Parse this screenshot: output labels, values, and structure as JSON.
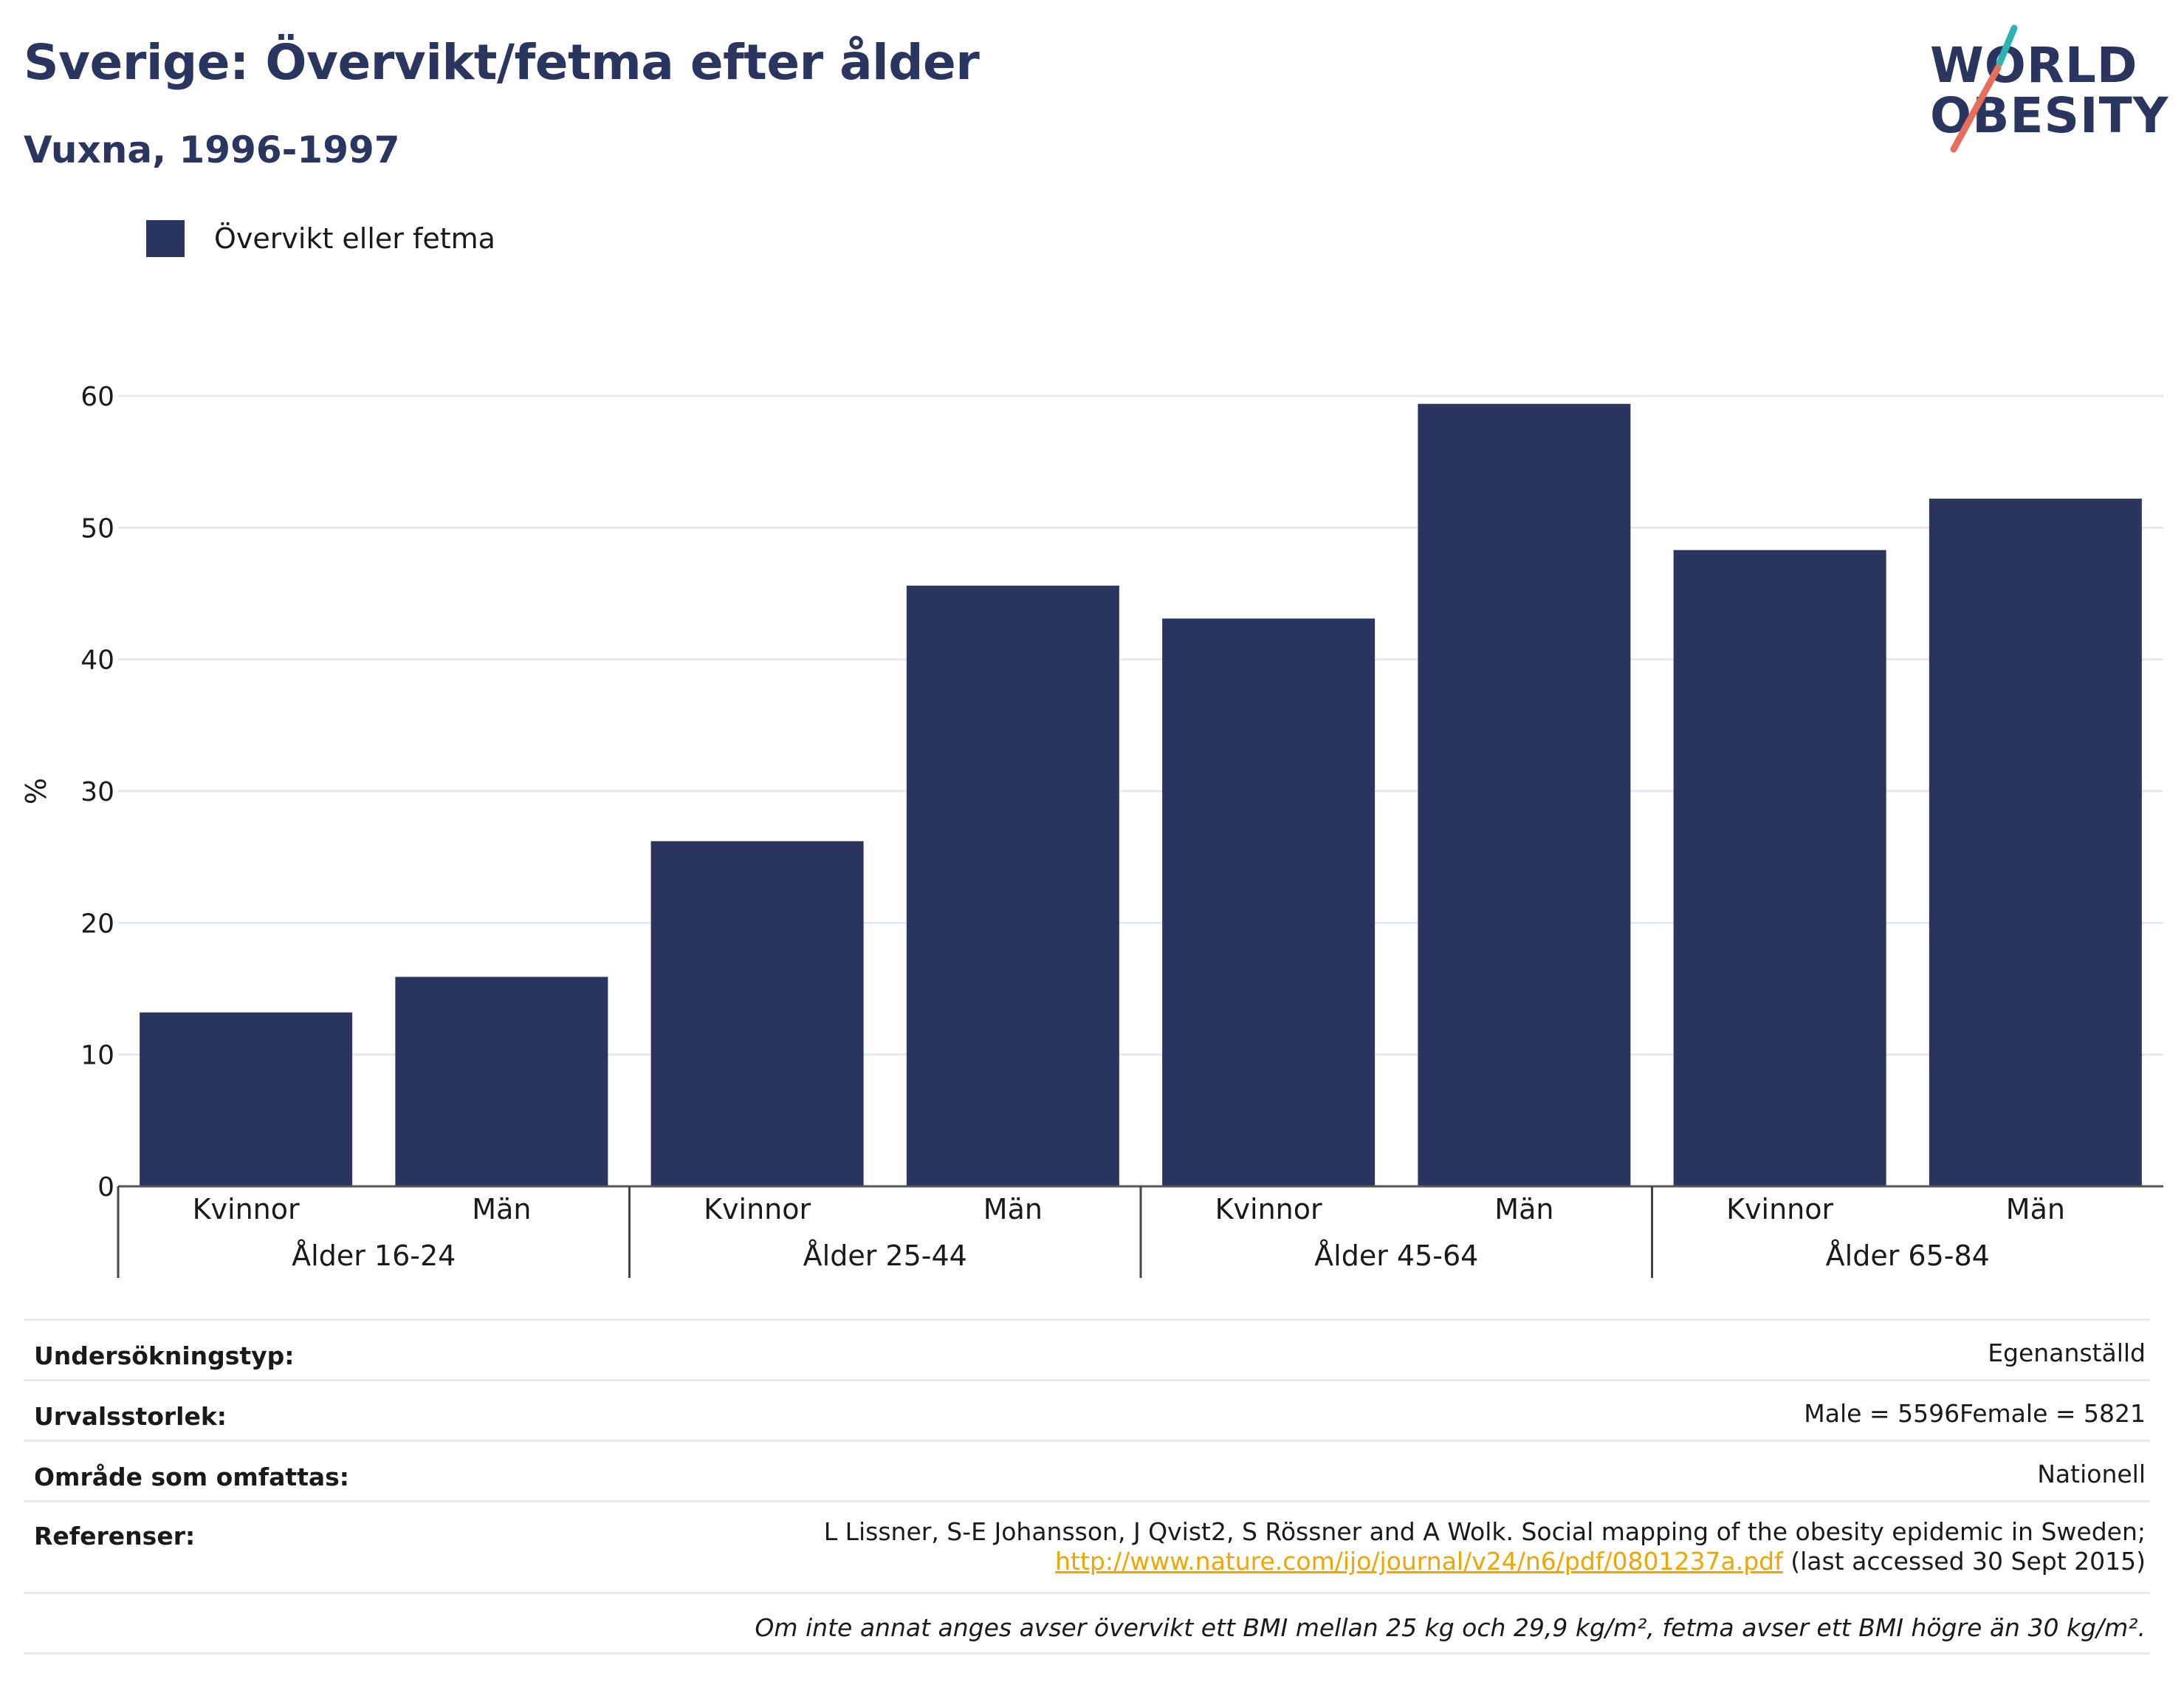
{
  "header": {
    "title": "Sverige: Övervikt/fetma efter ålder",
    "subtitle": "Vuxna, 1996-1997"
  },
  "logo": {
    "line1": "WORLD",
    "line2": "OBESITY"
  },
  "legend": {
    "label": "Övervikt eller fetma",
    "color": "#2a3560"
  },
  "chart_data": {
    "type": "bar",
    "ylabel": "%",
    "ylim": [
      0,
      60
    ],
    "yticks": [
      0,
      10,
      20,
      30,
      40,
      50,
      60
    ],
    "grid": true,
    "legend_position": "top-left",
    "groups": [
      "Ålder 16-24",
      "Ålder 25-44",
      "Ålder 45-64",
      "Ålder 65-84"
    ],
    "categories": [
      "Kvinnor",
      "Män",
      "Kvinnor",
      "Män",
      "Kvinnor",
      "Män",
      "Kvinnor",
      "Män"
    ],
    "series": [
      {
        "name": "Övervikt eller fetma",
        "color": "#2a3560",
        "values": [
          13.2,
          15.9,
          26.2,
          45.6,
          43.1,
          59.4,
          48.3,
          52.2
        ]
      }
    ]
  },
  "info": {
    "rows": [
      {
        "label": "Undersökningstyp:",
        "value": "Egenanställd"
      },
      {
        "label": "Urvalsstorlek:",
        "value": "Male = 5596Female = 5821"
      },
      {
        "label": "Område som omfattas:",
        "value": "Nationell"
      },
      {
        "label": "Referenser:",
        "value_line1": "L Lissner, S-E Johansson, J Qvist2, S Rössner and A Wolk. Social mapping of the obesity epidemic in Sweden;",
        "link": "http://www.nature.com/ijo/journal/v24/n6/pdf/0801237a.pdf",
        "value_line2_suffix": " (last accessed 30 Sept 2015)"
      }
    ],
    "note": "Om inte annat anges avser övervikt ett BMI mellan 25 kg och 29,9 kg/m², fetma avser ett BMI högre än 30 kg/m²."
  }
}
